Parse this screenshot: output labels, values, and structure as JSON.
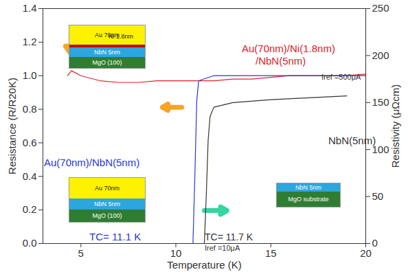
{
  "chart_data": {
    "type": "line",
    "xlabel": "Temperature (K)",
    "ylabel": "Resistance (R/R20K)",
    "y2label": "Resistivity (μΩcm)",
    "xlim": [
      3,
      20
    ],
    "xticks": [
      5,
      10,
      15,
      20
    ],
    "ylim": [
      0,
      1.4
    ],
    "yticks": [
      {
        "value": 0,
        "label": "0.0"
      },
      0.2,
      0.4,
      0.6,
      0.8,
      {
        "value": 1,
        "label": "1.0"
      },
      1.2,
      1.4
    ],
    "y2lim": [
      0,
      250
    ],
    "y2ticks": [
      0,
      50,
      100,
      150,
      200,
      250
    ],
    "series": [
      {
        "name": "Au(70nm)/Ni(1.8nm)/NbN(5nm)",
        "color": "#e0202a",
        "x": [
          4.3,
          4.5,
          5,
          6,
          7,
          8,
          9,
          10,
          11,
          12,
          13,
          14,
          15,
          16,
          17,
          18,
          19,
          20
        ],
        "values": [
          1.0,
          1.03,
          1.0,
          0.97,
          0.96,
          0.96,
          0.97,
          0.97,
          0.97,
          0.97,
          0.98,
          0.98,
          0.99,
          1.0,
          1.0,
          1.0,
          1.0,
          1.01
        ]
      },
      {
        "name": "Au(70nm)/NbN(5nm)",
        "color": "#2638d8",
        "x": [
          10.9,
          11.0,
          11.1,
          11.2,
          12,
          14,
          16,
          18,
          20
        ],
        "values": [
          0,
          0.4,
          0.85,
          0.97,
          1.0,
          1.0,
          1.0,
          1.0,
          1.0
        ]
      },
      {
        "name": "NbN(5nm)",
        "color": "#333333",
        "axis": "y2",
        "x": [
          11.5,
          11.6,
          11.7,
          11.8,
          12,
          13,
          15,
          17,
          19
        ],
        "values": [
          0,
          50,
          110,
          135,
          145,
          150,
          153,
          155,
          157
        ]
      }
    ],
    "annotations": [
      {
        "text": "Au(70nm)/Ni(1.8nm)",
        "color": "#e0202a"
      },
      {
        "text": "/NbN(5nm)",
        "color": "#e0202a"
      },
      {
        "text": "Iref =500μA",
        "color": "#333333"
      },
      {
        "text": "NbN(5nm)",
        "color": "#333333"
      },
      {
        "text": "Au(70nm)/NbN(5nm)",
        "color": "#2638d8"
      },
      {
        "text": "TC= 11.1 K",
        "color": "#2638d8"
      },
      {
        "text": "TC= 11.7 K",
        "color": "#333333"
      },
      {
        "text": "Iref =10μA",
        "color": "#333333"
      }
    ],
    "insets": [
      {
        "layers": [
          "Au 70nm",
          "",
          "NbN 5nm",
          "MgO (100)"
        ],
        "note": "Ni 1.8nm"
      },
      {
        "layers": [
          "Au 70nm",
          "NbN 5nm",
          "MgO (100)"
        ]
      },
      {
        "layers": [
          "NbN 5nm",
          "MgO substrate"
        ]
      }
    ]
  }
}
